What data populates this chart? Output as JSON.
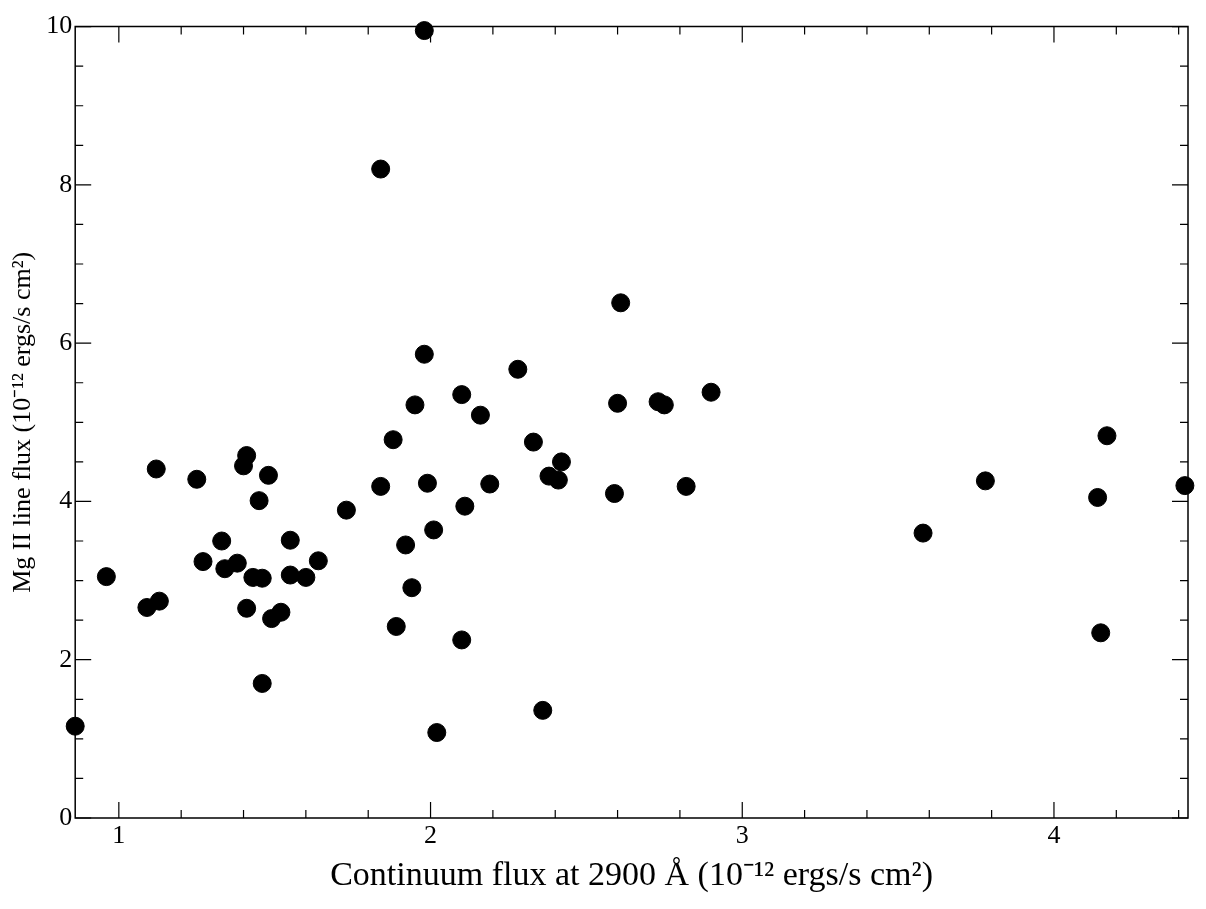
{
  "chart_data": {
    "type": "scatter",
    "xlabel": "Continuum flux at 2900 Å (10⁻¹² ergs/s cm²)",
    "ylabel": "Mg II line flux (10⁻¹² ergs/s cm²)",
    "xlim": [
      0.86,
      4.43
    ],
    "xticks": [
      1,
      2,
      3,
      4
    ],
    "ylim": [
      0,
      10
    ],
    "yticks": [
      0,
      2,
      4,
      6,
      8,
      10
    ],
    "grid": false,
    "legend": false,
    "marker": "circle",
    "series": [
      {
        "color": "#000000",
        "x": [
          0.86,
          0.96,
          1.09,
          1.12,
          1.13,
          1.25,
          1.27,
          1.33,
          1.34,
          1.38,
          1.4,
          1.41,
          1.41,
          1.43,
          1.45,
          1.46,
          1.46,
          1.48,
          1.49,
          1.52,
          1.55,
          1.55,
          1.6,
          1.64,
          1.73,
          1.84,
          1.84,
          1.88,
          1.89,
          1.92,
          1.94,
          1.95,
          1.98,
          1.98,
          1.99,
          2.01,
          2.02,
          2.1,
          2.1,
          2.11,
          2.16,
          2.19,
          2.28,
          2.33,
          2.36,
          2.38,
          2.41,
          2.42,
          2.59,
          2.6,
          2.61,
          2.73,
          2.75,
          2.82,
          2.9,
          3.58,
          3.78,
          4.14,
          4.15,
          4.17,
          4.42
        ],
        "values": [
          1.16,
          3.05,
          2.66,
          4.41,
          2.74,
          4.28,
          3.24,
          3.5,
          3.15,
          3.22,
          4.45,
          4.58,
          2.65,
          3.04,
          4.01,
          3.03,
          1.7,
          4.33,
          2.52,
          2.6,
          3.51,
          3.07,
          3.04,
          3.25,
          3.89,
          8.2,
          4.19,
          4.78,
          2.42,
          3.45,
          2.91,
          5.22,
          9.95,
          5.86,
          4.23,
          3.64,
          1.08,
          5.35,
          2.25,
          3.94,
          5.09,
          4.22,
          5.67,
          4.75,
          1.36,
          4.32,
          4.27,
          4.5,
          4.1,
          5.24,
          6.51,
          5.26,
          5.22,
          4.19,
          5.38,
          3.6,
          4.26,
          4.05,
          2.34,
          4.83,
          4.2
        ]
      }
    ]
  }
}
